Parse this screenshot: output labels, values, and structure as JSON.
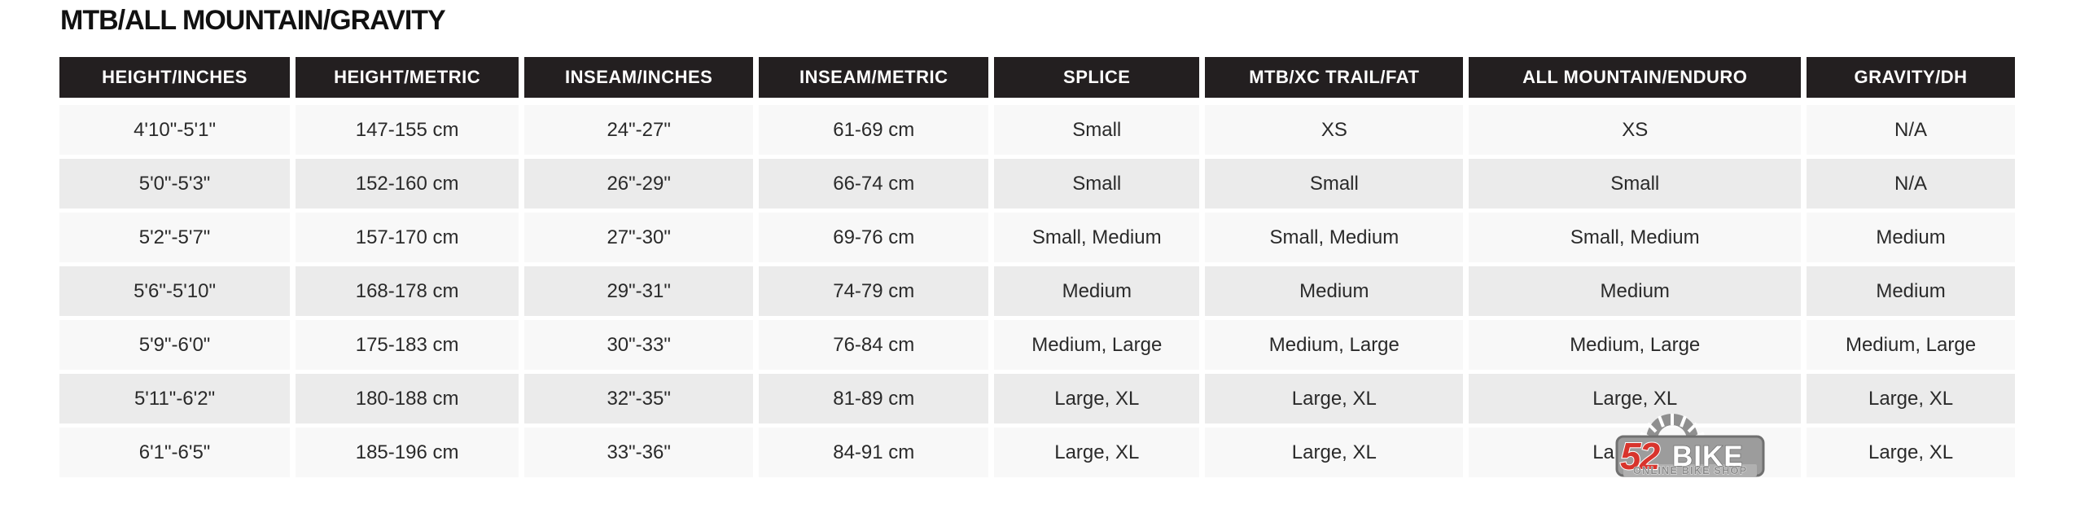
{
  "page": {
    "title": "MTB/ALL MOUNTAIN/GRAVITY"
  },
  "colors": {
    "header_bg": "#231f20",
    "header_text": "#ffffff",
    "row_odd_bg": "#f8f8f8",
    "row_even_bg": "#ebebeb",
    "cell_text": "#2a2a2a",
    "logo_red": "#d8342c",
    "logo_gray": "#9c9c9c"
  },
  "table": {
    "headers": [
      "HEIGHT/INCHES",
      "HEIGHT/METRIC",
      "INSEAM/INCHES",
      "INSEAM/METRIC",
      "SPLICE",
      "MTB/XC TRAIL/FAT",
      "ALL MOUNTAIN/ENDURO",
      "GRAVITY/DH"
    ],
    "rows": [
      [
        "4'10\"-5'1\"",
        "147-155 cm",
        "24\"-27\"",
        "61-69 cm",
        "Small",
        "XS",
        "XS",
        "N/A"
      ],
      [
        "5'0\"-5'3\"",
        "152-160 cm",
        "26\"-29\"",
        "66-74 cm",
        "Small",
        "Small",
        "Small",
        "N/A"
      ],
      [
        "5'2\"-5'7\"",
        "157-170 cm",
        "27\"-30\"",
        "69-76 cm",
        "Small, Medium",
        "Small, Medium",
        "Small, Medium",
        "Medium"
      ],
      [
        "5'6\"-5'10\"",
        "168-178 cm",
        "29\"-31\"",
        "74-79 cm",
        "Medium",
        "Medium",
        "Medium",
        "Medium"
      ],
      [
        "5'9\"-6'0\"",
        "175-183 cm",
        "30\"-33\"",
        "76-84 cm",
        "Medium, Large",
        "Medium, Large",
        "Medium, Large",
        "Medium, Large"
      ],
      [
        "5'11\"-6'2\"",
        "180-188 cm",
        "32\"-35\"",
        "81-89 cm",
        "Large, XL",
        "Large, XL",
        "Large, XL",
        "Large, XL"
      ],
      [
        "6'1\"-6'5\"",
        "185-196 cm",
        "33\"-36\"",
        "84-91 cm",
        "Large, XL",
        "Large, XL",
        "Large, XL",
        "Large, XL"
      ]
    ]
  },
  "logo": {
    "number": "52",
    "name": "BIKE",
    "tagline": "ONLINE BIKE SHOP"
  },
  "chart_data": {
    "type": "table",
    "title": "MTB/ALL MOUNTAIN/GRAVITY",
    "columns": [
      "HEIGHT/INCHES",
      "HEIGHT/METRIC",
      "INSEAM/INCHES",
      "INSEAM/METRIC",
      "SPLICE",
      "MTB/XC TRAIL/FAT",
      "ALL MOUNTAIN/ENDURO",
      "GRAVITY/DH"
    ],
    "rows": [
      [
        "4'10\"-5'1\"",
        "147-155 cm",
        "24\"-27\"",
        "61-69 cm",
        "Small",
        "XS",
        "XS",
        "N/A"
      ],
      [
        "5'0\"-5'3\"",
        "152-160 cm",
        "26\"-29\"",
        "66-74 cm",
        "Small",
        "Small",
        "Small",
        "N/A"
      ],
      [
        "5'2\"-5'7\"",
        "157-170 cm",
        "27\"-30\"",
        "69-76 cm",
        "Small, Medium",
        "Small, Medium",
        "Small, Medium",
        "Medium"
      ],
      [
        "5'6\"-5'10\"",
        "168-178 cm",
        "29\"-31\"",
        "74-79 cm",
        "Medium",
        "Medium",
        "Medium",
        "Medium"
      ],
      [
        "5'9\"-6'0\"",
        "175-183 cm",
        "30\"-33\"",
        "76-84 cm",
        "Medium, Large",
        "Medium, Large",
        "Medium, Large",
        "Medium, Large"
      ],
      [
        "5'11\"-6'2\"",
        "180-188 cm",
        "32\"-35\"",
        "81-89 cm",
        "Large, XL",
        "Large, XL",
        "Large, XL",
        "Large, XL"
      ],
      [
        "6'1\"-6'5\"",
        "185-196 cm",
        "33\"-36\"",
        "84-91 cm",
        "Large, XL",
        "Large, XL",
        "Large, XL",
        "Large, XL"
      ]
    ],
    "layout": {
      "zebra_striping": true,
      "header_style": "dark-bar",
      "grid": "gapped-cells"
    }
  }
}
